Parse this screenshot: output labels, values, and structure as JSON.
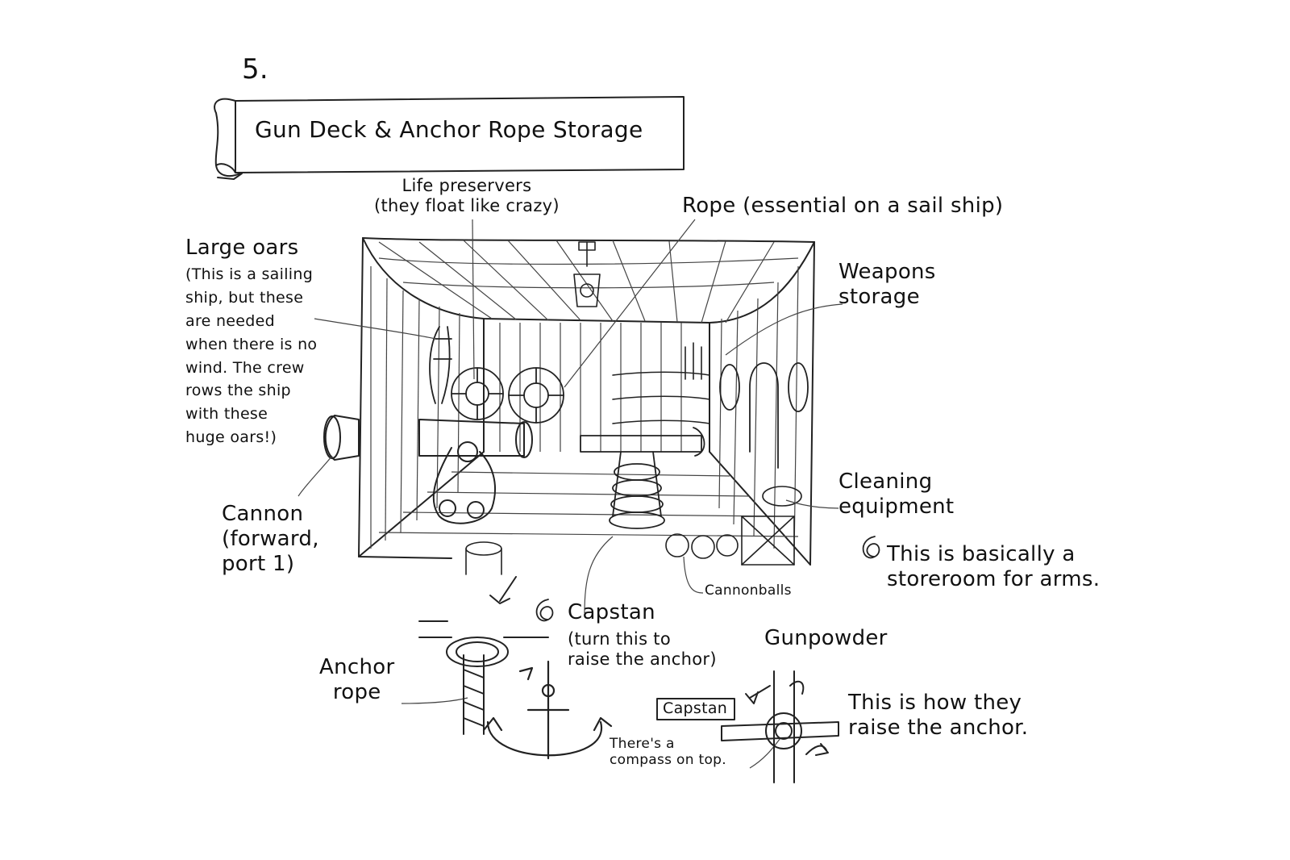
{
  "page_number": "5.",
  "title": "Gun Deck & Anchor Rope Storage",
  "labels": {
    "life_preservers": "Life preservers\n(they float like crazy)",
    "rope": "Rope (essential on a sail ship)",
    "large_oars_title": "Large oars",
    "large_oars_note": "(This is a sailing\nship, but these\nare needed\nwhen there is no\nwind. The crew\nrows the ship\nwith these\nhuge oars!)",
    "weapons_storage": "Weapons\nstorage",
    "cleaning_equipment": "Cleaning\nequipment",
    "cannon": "Cannon\n(forward,\nport 1)",
    "storeroom_note": "This is basically a\nstoreroom for arms.",
    "cannonballs": "Cannonballs",
    "capstan_title": "Capstan",
    "capstan_note": "(turn this to\nraise the anchor)",
    "gunpowder": "Gunpowder",
    "anchor_rope": "Anchor\nrope",
    "capstan_box": "Capstan",
    "compass_note": "There's a\ncompass on top.",
    "raise_anchor_note": "This is how they\nraise the anchor."
  },
  "icons": [
    "scroll-banner-icon",
    "spiral-bullet-icon",
    "anchor-icon",
    "capstan-icon",
    "cannon-icon",
    "life-preserver-icon",
    "lantern-icon",
    "barrel-icon"
  ]
}
